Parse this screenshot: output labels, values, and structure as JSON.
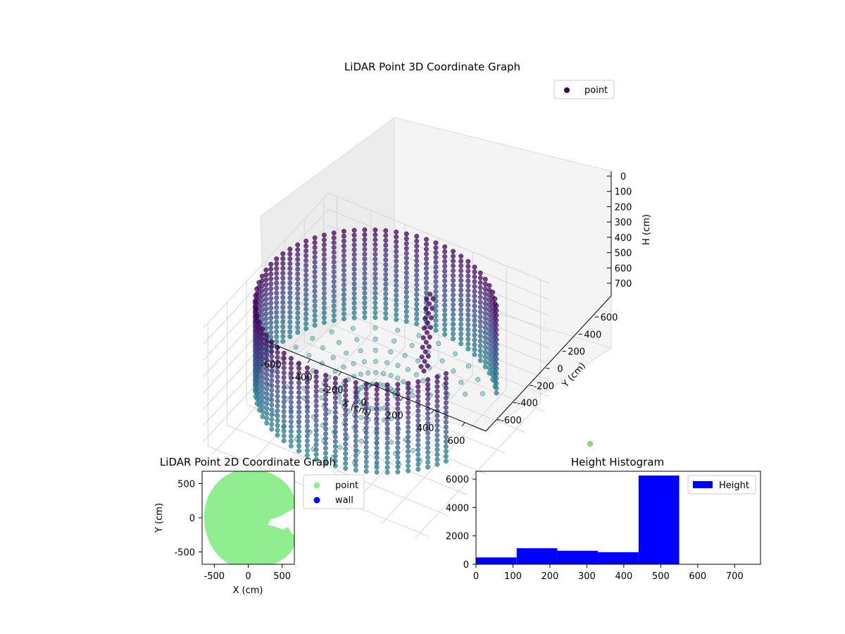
{
  "chart_data": [
    {
      "type": "scatter",
      "projection": "3d",
      "title": "LiDAR Point 3D Coordinate Graph",
      "xlabel": "X (cm)",
      "ylabel": "Y (cm)",
      "zlabel": "H (cm)",
      "x_ticks": [
        -600,
        -400,
        -200,
        0,
        200,
        400,
        600
      ],
      "y_ticks": [
        -600,
        -400,
        -200,
        0,
        200,
        400,
        600
      ],
      "z_ticks": [
        0,
        100,
        200,
        300,
        400,
        500,
        600,
        700
      ],
      "xlim": [
        -650,
        650
      ],
      "ylim": [
        -650,
        650
      ],
      "zlim": [
        760,
        0
      ],
      "z_inverted": true,
      "grid": true,
      "legend": {
        "position": "top-right",
        "entries": [
          {
            "name": "point",
            "color": "#440154"
          }
        ]
      },
      "colormap": "viridis",
      "description_data": {
        "wall_radius": 620,
        "wall_height_range": [
          0,
          560
        ],
        "gap_angle_deg": [
          -25,
          35
        ],
        "floor_height": 560
      }
    },
    {
      "type": "scatter",
      "title": "LiDAR Point 2D Coordinate Graph",
      "xlabel": "X (cm)",
      "ylabel": "Y (cm)",
      "x_ticks": [
        -500,
        0,
        500
      ],
      "y_ticks": [
        -500,
        0,
        500
      ],
      "xlim": [
        -680,
        680
      ],
      "ylim": [
        -680,
        680
      ],
      "legend": {
        "position": "right",
        "entries": [
          {
            "name": "point",
            "color": "#90ee90"
          },
          {
            "name": "wall",
            "color": "#0000ff"
          }
        ]
      }
    },
    {
      "type": "bar",
      "title": "Height Histogram",
      "bins": [
        {
          "x0": 0,
          "x1": 110,
          "value": 480
        },
        {
          "x0": 110,
          "x1": 220,
          "value": 1130
        },
        {
          "x0": 220,
          "x1": 330,
          "value": 950
        },
        {
          "x0": 330,
          "x1": 440,
          "value": 850
        },
        {
          "x0": 440,
          "x1": 550,
          "value": 6250
        },
        {
          "x0": 550,
          "x1": 660,
          "value": 0
        },
        {
          "x0": 660,
          "x1": 770,
          "value": 0
        }
      ],
      "xlim": [
        0,
        770
      ],
      "ylim": [
        0,
        6550
      ],
      "x_ticks": [
        0,
        100,
        200,
        300,
        400,
        500,
        600,
        700
      ],
      "y_ticks": [
        0,
        2000,
        4000,
        6000
      ],
      "color": "#0000ff",
      "legend": {
        "position": "top-right",
        "entries": [
          {
            "name": "Height",
            "color": "#0000ff"
          }
        ]
      }
    }
  ]
}
